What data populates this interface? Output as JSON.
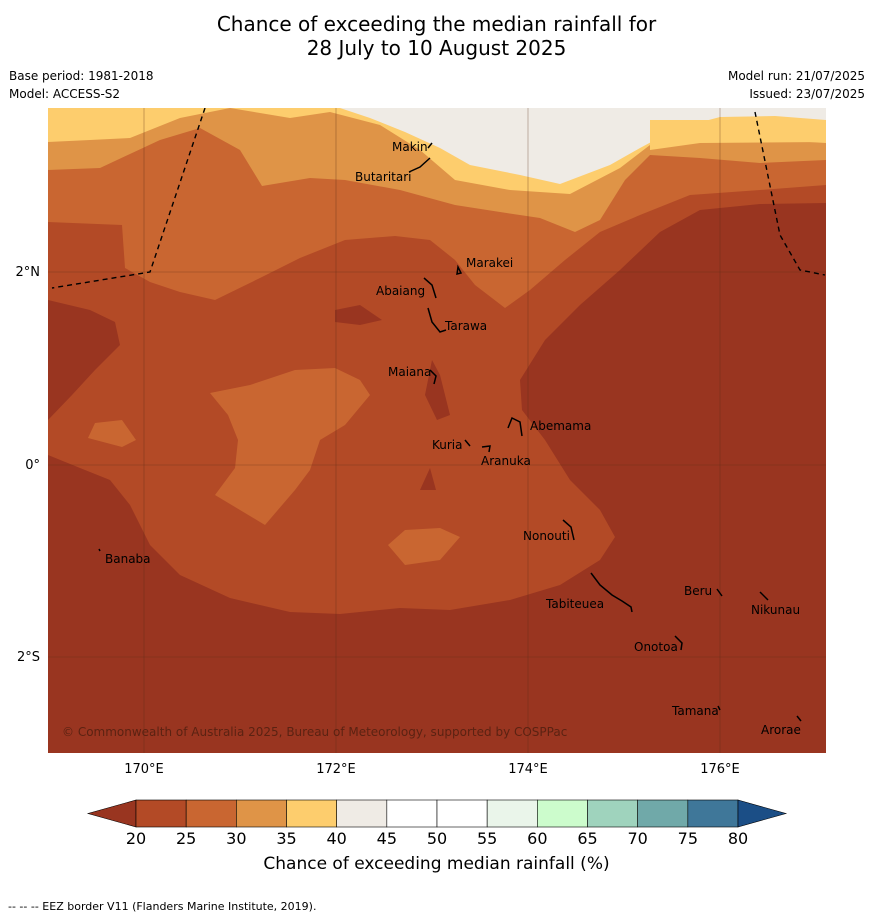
{
  "title": {
    "line1": "Chance of exceeding the median rainfall for",
    "line2": "28 July to 10 August 2025"
  },
  "meta": {
    "base_period": "Base period: 1981-2018",
    "model": "Model: ACCESS-S2",
    "model_run": "Model run: 21/07/2025",
    "issued": "Issued: 23/07/2025"
  },
  "map": {
    "lat_labels": [
      "2°N",
      "0°",
      "2°S"
    ],
    "lon_labels": [
      "170°E",
      "172°E",
      "174°E",
      "176°E"
    ],
    "copyright": "© Commonwealth of Australia 2025, Bureau of Meteorology, supported by COSPPac",
    "places": [
      "Makin",
      "Butaritari",
      "Marakei",
      "Abaiang",
      "Tarawa",
      "Maiana",
      "Abemama",
      "Kuria",
      "Aranuka",
      "Banaba",
      "Nonouti",
      "Beru",
      "Tabiteuea",
      "Nikunau",
      "Onotoa",
      "Tamana",
      "Arorae"
    ]
  },
  "legend": {
    "title": "Chance of exceeding median rainfall (%)",
    "ticks": [
      "20",
      "25",
      "30",
      "35",
      "40",
      "45",
      "50",
      "55",
      "60",
      "65",
      "70",
      "75",
      "80"
    ],
    "colors": [
      "#993520",
      "#b34a26",
      "#c96631",
      "#df9447",
      "#fdcd6d",
      "#efebe5",
      "#ffffff",
      "#ffffff",
      "#eaf5ea",
      "#ccfccc",
      "#9fd3bd",
      "#70a9a9",
      "#3f7799",
      "#1b4e86"
    ]
  },
  "footnote": "--  --  -- EEZ border V11 (Flanders Marine Institute, 2019)."
}
